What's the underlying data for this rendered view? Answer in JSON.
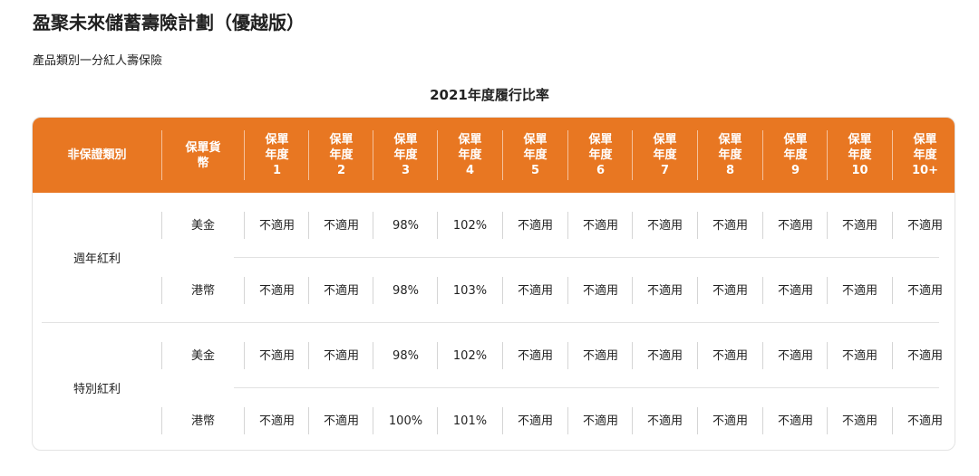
{
  "page": {
    "title": "盈聚未來儲蓄壽險計劃（優越版）",
    "subtitle": "產品類別一分紅人壽保險"
  },
  "table": {
    "title": "2021年度履行比率",
    "header": {
      "type": "非保證類別",
      "currency": [
        "保單貨",
        "幣"
      ],
      "years": [
        [
          "保單",
          "年度",
          "1"
        ],
        [
          "保單",
          "年度",
          "2"
        ],
        [
          "保單",
          "年度",
          "3"
        ],
        [
          "保單",
          "年度",
          "4"
        ],
        [
          "保單",
          "年度",
          "5"
        ],
        [
          "保單",
          "年度",
          "6"
        ],
        [
          "保單",
          "年度",
          "7"
        ],
        [
          "保單",
          "年度",
          "8"
        ],
        [
          "保單",
          "年度",
          "9"
        ],
        [
          "保單",
          "年度",
          "10"
        ],
        [
          "保單",
          "年度",
          "10+"
        ]
      ]
    },
    "groups": [
      {
        "type": "週年紅利",
        "rows": [
          {
            "currency": "美金",
            "values": [
              "不適用",
              "不適用",
              "98%",
              "102%",
              "不適用",
              "不適用",
              "不適用",
              "不適用",
              "不適用",
              "不適用",
              "不適用"
            ]
          },
          {
            "currency": "港幣",
            "values": [
              "不適用",
              "不適用",
              "98%",
              "103%",
              "不適用",
              "不適用",
              "不適用",
              "不適用",
              "不適用",
              "不適用",
              "不適用"
            ]
          }
        ]
      },
      {
        "type": "特別紅利",
        "rows": [
          {
            "currency": "美金",
            "values": [
              "不適用",
              "不適用",
              "98%",
              "102%",
              "不適用",
              "不適用",
              "不適用",
              "不適用",
              "不適用",
              "不適用",
              "不適用"
            ]
          },
          {
            "currency": "港幣",
            "values": [
              "不適用",
              "不適用",
              "100%",
              "101%",
              "不適用",
              "不適用",
              "不適用",
              "不適用",
              "不適用",
              "不適用",
              "不適用"
            ]
          }
        ]
      }
    ]
  },
  "colors": {
    "header_bg": "#e87722",
    "header_text": "#ffffff"
  }
}
